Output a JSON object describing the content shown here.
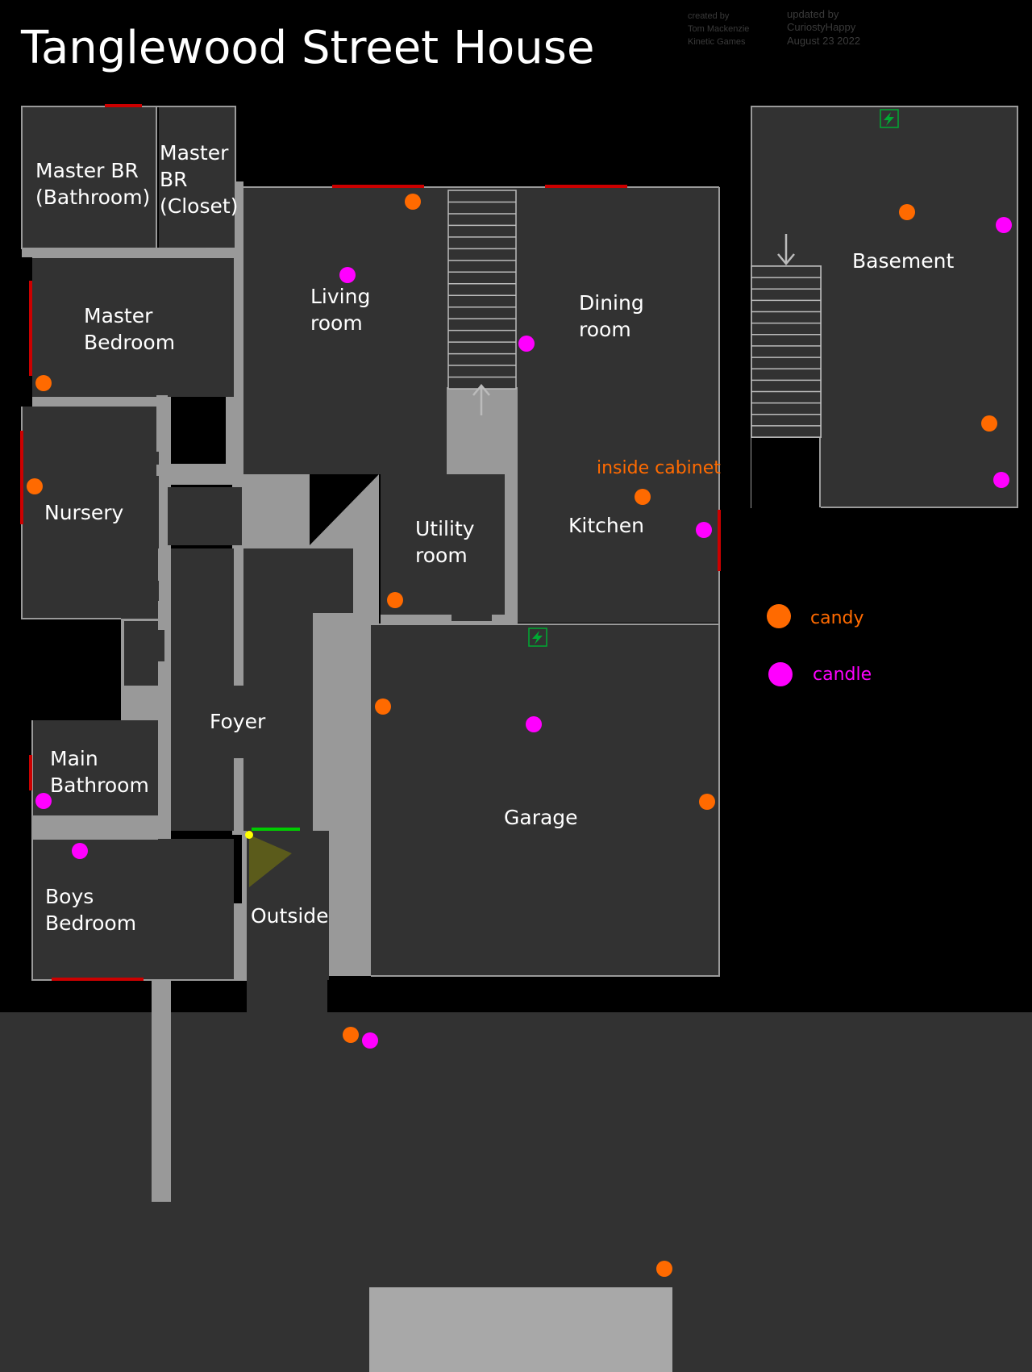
{
  "title": "Tanglewood Street House",
  "credits": {
    "created_heading": "created by",
    "created_by_line1": "Tom Mackenzie",
    "created_by_line2": "Kinetic Games",
    "updated_heading": "updated by",
    "updated_by": "CuriostyHappy",
    "updated_date": "August 23 2022"
  },
  "rooms": {
    "master_bathroom": [
      "Master BR",
      "(Bathroom)"
    ],
    "master_closet": [
      "Master",
      "BR",
      "(Closet)"
    ],
    "living_room": [
      "Living",
      "room"
    ],
    "dining_room": [
      "Dining",
      "room"
    ],
    "basement": [
      "Basement"
    ],
    "master_bedroom": [
      "Master",
      "Bedroom"
    ],
    "nursery": [
      "Nursery"
    ],
    "utility_room": [
      "Utility",
      "room"
    ],
    "kitchen": [
      "Kitchen"
    ],
    "foyer": [
      "Foyer"
    ],
    "main_bathroom": [
      "Main",
      "Bathroom"
    ],
    "garage": [
      "Garage"
    ],
    "boys_bedroom": [
      "Boys",
      "Bedroom"
    ],
    "outside": [
      "Outside"
    ]
  },
  "annotation": "inside cabinet",
  "legend": [
    {
      "key": "candy",
      "label": "candy",
      "color": "#ff6a00"
    },
    {
      "key": "candle",
      "label": "candle",
      "color": "#ff00ff"
    }
  ],
  "colors": {
    "background": "#000000",
    "room_fill": "#323232",
    "hallway": "#999999",
    "driveway": "#a8a8a8",
    "window": "#cc0000",
    "front_door": "#00cc00",
    "fuse_box": "#00aa33",
    "candy": "#ff6a00",
    "candle": "#ff00ff",
    "spawn_marker": "#ffff00",
    "annotation": "#ff6a00"
  },
  "icons": {
    "fuse_box": "lightning-bolt-icon",
    "stairs_arrow": "arrow-icon",
    "spawn": "player-spawn-icon"
  },
  "markers": {
    "candy": [
      {
        "room": "living_room"
      },
      {
        "room": "master_bedroom"
      },
      {
        "room": "nursery"
      },
      {
        "room": "kitchen"
      },
      {
        "room": "utility_room"
      },
      {
        "room": "garage"
      },
      {
        "room": "garage"
      },
      {
        "room": "basement"
      },
      {
        "room": "basement"
      },
      {
        "room": "outside"
      },
      {
        "room": "outside"
      }
    ],
    "candle": [
      {
        "room": "living_room"
      },
      {
        "room": "living_room"
      },
      {
        "room": "kitchen"
      },
      {
        "room": "garage"
      },
      {
        "room": "main_bathroom"
      },
      {
        "room": "boys_bedroom"
      },
      {
        "room": "basement"
      },
      {
        "room": "basement"
      },
      {
        "room": "outside"
      }
    ]
  }
}
